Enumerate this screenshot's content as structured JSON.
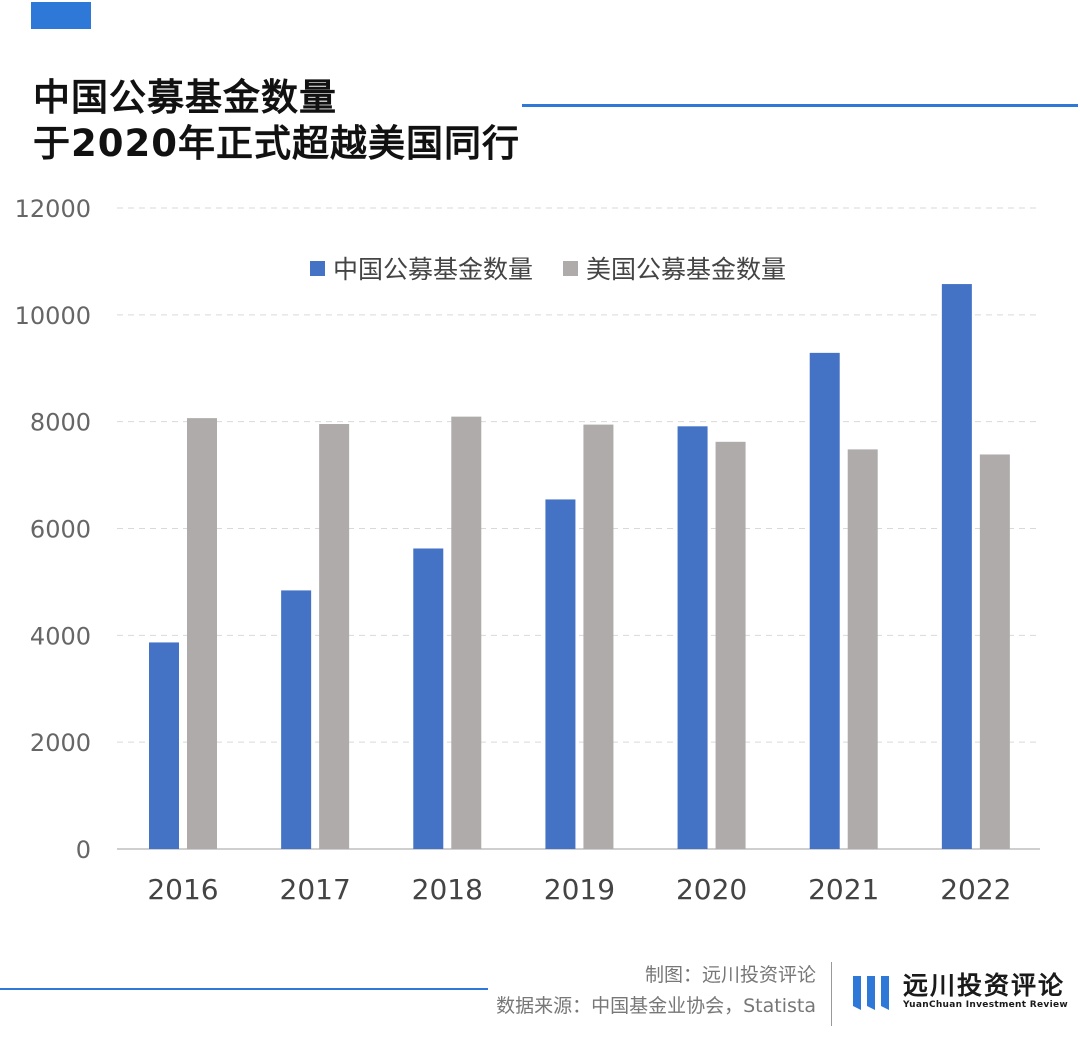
{
  "title": {
    "line1": "中国公募基金数量",
    "line2": "于2020年正式超越美国同行"
  },
  "colors": {
    "accent": "#2e78d8",
    "china": "#4472c4",
    "us": "#afabab",
    "grid": "#d9d9d9"
  },
  "footer": {
    "credit_chart": "制图：远川投资评论",
    "credit_source": "数据来源：中国基金业协会，Statista"
  },
  "brand": {
    "name": "远川投资评论",
    "subtitle": "YuanChuan Investment Review"
  },
  "chart_data": {
    "type": "bar",
    "title": "",
    "xlabel": "",
    "ylabel": "",
    "categories": [
      "2016",
      "2017",
      "2018",
      "2019",
      "2020",
      "2021",
      "2022"
    ],
    "series": [
      {
        "name": "中国公募基金数量",
        "color": "#4472c4",
        "values": [
          3867,
          4841,
          5626,
          6544,
          7913,
          9288,
          10576
        ]
      },
      {
        "name": "美国公募基金数量",
        "color": "#afabab",
        "values": [
          8066,
          7956,
          8094,
          7945,
          7623,
          7481,
          7386
        ]
      }
    ],
    "ylim": [
      0,
      12000
    ],
    "yticks": [
      "0",
      "2000",
      "4000",
      "6000",
      "8000",
      "10000",
      "12000"
    ],
    "grid": true,
    "legend_position": "top-center"
  }
}
